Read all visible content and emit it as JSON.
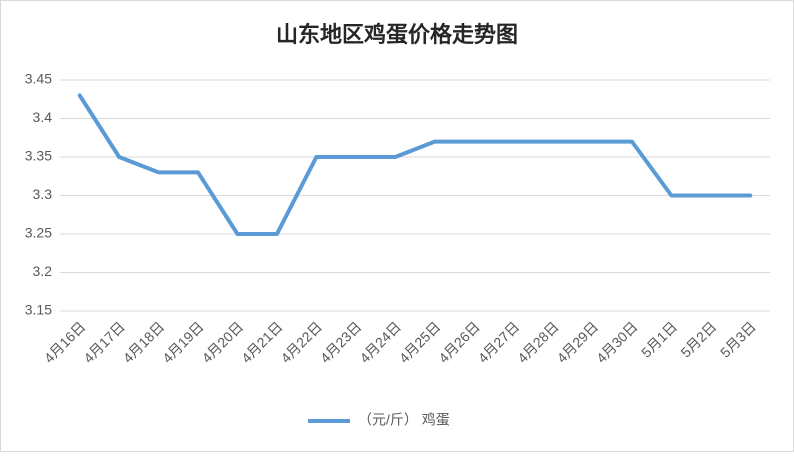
{
  "chart_data": {
    "type": "line",
    "title": "山东地区鸡蛋价格走势图",
    "categories": [
      "4月16日",
      "4月17日",
      "4月18日",
      "4月19日",
      "4月20日",
      "4月21日",
      "4月22日",
      "4月23日",
      "4月24日",
      "4月25日",
      "4月26日",
      "4月27日",
      "4月28日",
      "4月29日",
      "4月30日",
      "5月1日",
      "5月2日",
      "5月3日"
    ],
    "series": [
      {
        "name": "（元/斤） 鸡蛋",
        "color": "#5b9bd5",
        "values": [
          3.43,
          3.35,
          3.33,
          3.33,
          3.25,
          3.25,
          3.35,
          3.35,
          3.35,
          3.37,
          3.37,
          3.37,
          3.37,
          3.37,
          3.37,
          3.3,
          3.3,
          3.3
        ]
      }
    ],
    "ylim": [
      3.15,
      3.45
    ],
    "yticks": [
      3.15,
      3.2,
      3.25,
      3.3,
      3.35,
      3.4,
      3.45
    ],
    "grid": true,
    "legend": "bottom"
  }
}
